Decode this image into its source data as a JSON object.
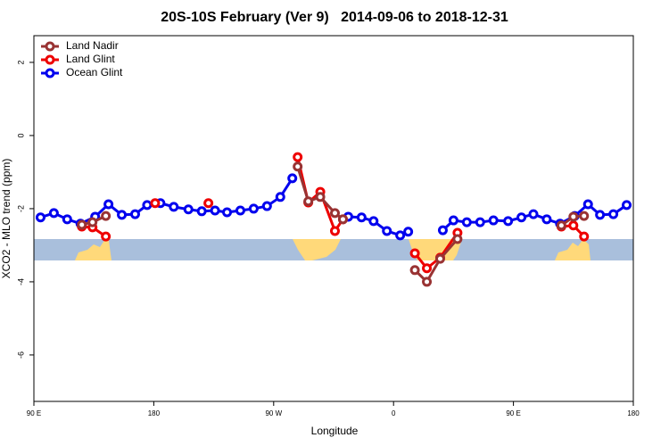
{
  "chart_data": {
    "type": "line",
    "title": "20S-10S February (Ver 9)   2014-09-06 to 2018-12-31",
    "x_label": "Longitude",
    "y_label": "XCO2 - MLO trend (ppm)",
    "xlim": [
      90,
      540
    ],
    "xticks": [
      {
        "value": 90,
        "label": "90 E"
      },
      {
        "value": 180,
        "label": "180"
      },
      {
        "value": 270,
        "label": "90 W"
      },
      {
        "value": 360,
        "label": "0"
      },
      {
        "value": 450,
        "label": "90 E"
      },
      {
        "value": 540,
        "label": "180"
      }
    ],
    "ylim": [
      -7.27,
      2.73
    ],
    "yticks": [
      2,
      0,
      -2,
      -4,
      -6
    ],
    "legend": "top-left",
    "series": [
      {
        "name": "Land Nadir",
        "color": "#993333",
        "x": [
          126,
          134,
          144,
          null,
          288,
          296,
          305,
          316,
          322,
          null,
          376,
          385,
          395,
          408,
          null,
          486,
          495,
          503
        ],
        "values": [
          -2.44,
          -2.37,
          -2.2,
          null,
          -0.85,
          -1.8,
          -1.68,
          -2.12,
          -2.29,
          null,
          -3.68,
          -4.0,
          -3.37,
          -2.83,
          null,
          -2.46,
          -2.22,
          -2.2
        ]
      },
      {
        "name": "Land Glint",
        "color": "#ee0000",
        "x": [
          126,
          134,
          144,
          null,
          181,
          null,
          221,
          null,
          288,
          296,
          305,
          316,
          322,
          null,
          376,
          385,
          395,
          408,
          null,
          486,
          495,
          503
        ],
        "values": [
          -2.49,
          -2.51,
          -2.76,
          null,
          -1.85,
          null,
          -1.85,
          null,
          -0.59,
          -1.83,
          -1.54,
          -2.61,
          -2.29,
          null,
          -3.22,
          -3.63,
          -3.34,
          -2.66,
          null,
          -2.49,
          -2.46,
          -2.76
        ]
      },
      {
        "name": "Ocean Glint",
        "color": "#0000ee",
        "x": [
          95,
          105,
          115,
          125,
          136,
          146,
          156,
          166,
          175,
          185,
          195,
          206,
          216,
          226,
          235,
          245,
          255,
          265,
          275,
          284,
          null,
          326,
          336,
          345,
          355,
          365,
          371,
          null,
          397,
          405,
          415,
          425,
          435,
          446,
          456,
          465,
          475,
          485,
          496,
          506,
          515,
          525,
          535
        ],
        "values": [
          -2.24,
          -2.12,
          -2.29,
          -2.41,
          -2.22,
          -1.88,
          -2.17,
          -2.15,
          -1.9,
          -1.85,
          -1.95,
          -2.02,
          -2.07,
          -2.05,
          -2.1,
          -2.05,
          -2.0,
          -1.93,
          -1.68,
          -1.17,
          null,
          -2.22,
          -2.24,
          -2.34,
          -2.61,
          -2.73,
          -2.63,
          null,
          -2.59,
          -2.32,
          -2.37,
          -2.37,
          -2.32,
          -2.34,
          -2.24,
          -2.15,
          -2.29,
          -2.41,
          -2.2,
          -1.88,
          -2.17,
          -2.15,
          -1.9
        ]
      }
    ]
  }
}
